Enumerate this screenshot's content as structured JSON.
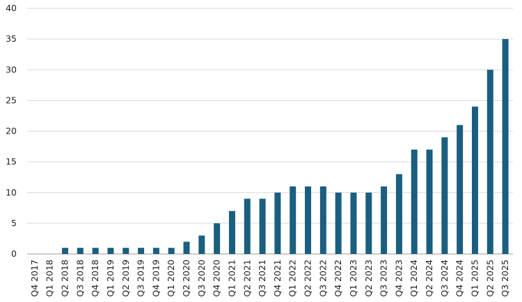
{
  "chart_data": {
    "type": "bar",
    "categories": [
      "Q4 2017",
      "Q1 2018",
      "Q2 2018",
      "Q3 2018",
      "Q4 2018",
      "Q1 2019",
      "Q2 2019",
      "Q3 2019",
      "Q4 2019",
      "Q1 2020",
      "Q2 2020",
      "Q3 2020",
      "Q4 2020",
      "Q1 2021",
      "Q2 2021",
      "Q3 2021",
      "Q4 2021",
      "Q1 2022",
      "Q2 2022",
      "Q3 2022",
      "Q4 2022",
      "Q1 2023",
      "Q2 2023",
      "Q3 2023",
      "Q4 2023",
      "Q1 2024",
      "Q2 2024",
      "Q3 2024",
      "Q4 2024",
      "Q1 2025",
      "Q2 2025",
      "Q3 2025"
    ],
    "values": [
      0,
      0,
      1,
      1,
      1,
      1,
      1,
      1,
      1,
      1,
      2,
      3,
      5,
      7,
      9,
      9,
      10,
      11,
      11,
      11,
      10,
      10,
      10,
      11,
      13,
      17,
      17,
      19,
      21,
      24,
      30,
      35
    ],
    "color": "#1a5e80",
    "ylim": [
      0,
      40
    ],
    "yticks": [
      0,
      5,
      10,
      15,
      20,
      25,
      30,
      35,
      40
    ],
    "grid": true
  }
}
